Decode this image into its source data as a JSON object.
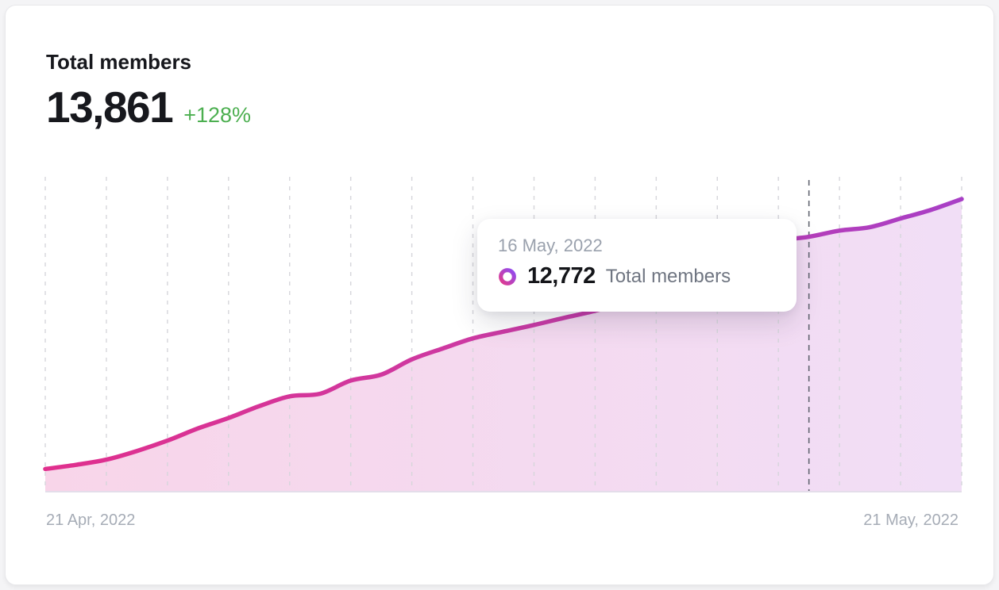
{
  "card": {
    "title": "Total members",
    "value": "13,861",
    "delta": "+128%"
  },
  "tooltip": {
    "date": "16 May, 2022",
    "value": "12,772",
    "label": "Total members"
  },
  "axis": {
    "start_label": "21 Apr, 2022",
    "end_label": "21 May, 2022"
  },
  "colors": {
    "line_start": "#e02f8d",
    "line_mid": "#c93ba6",
    "line_end": "#a83fc6",
    "area_start": "#f8d5e9",
    "area_end": "#f1def6",
    "gridline": "#d6d6db",
    "hover_line": "#60646f",
    "baseline": "#dbd2e3",
    "delta_green": "#4caf50",
    "ring_start": "#e13a8c",
    "ring_end": "#8f4bf2"
  },
  "chart_data": {
    "type": "area",
    "title": "Total members",
    "x": [
      "2022-04-21",
      "2022-04-22",
      "2022-04-23",
      "2022-04-24",
      "2022-04-25",
      "2022-04-26",
      "2022-04-27",
      "2022-04-28",
      "2022-04-29",
      "2022-04-30",
      "2022-05-01",
      "2022-05-02",
      "2022-05-03",
      "2022-05-04",
      "2022-05-05",
      "2022-05-06",
      "2022-05-07",
      "2022-05-08",
      "2022-05-09",
      "2022-05-10",
      "2022-05-11",
      "2022-05-12",
      "2022-05-13",
      "2022-05-14",
      "2022-05-15",
      "2022-05-16",
      "2022-05-17",
      "2022-05-18",
      "2022-05-19",
      "2022-05-20",
      "2022-05-21"
    ],
    "values": [
      6080,
      6200,
      6350,
      6600,
      6900,
      7250,
      7550,
      7890,
      8175,
      8250,
      8630,
      8800,
      9240,
      9550,
      9845,
      10040,
      10230,
      10440,
      10640,
      10900,
      11200,
      11550,
      11900,
      12300,
      12650,
      12772,
      12950,
      13050,
      13300,
      13550,
      13861
    ],
    "ylim": [
      5450,
      14500
    ],
    "xlabel": "",
    "ylabel": "",
    "x_start_label": "21 Apr, 2022",
    "x_end_label": "21 May, 2022",
    "grid": "vertical-dashed",
    "gridline_interval_days": 2,
    "legend": "none",
    "hover_index": 25,
    "hover_date": "16 May, 2022",
    "hover_value": 12772
  }
}
